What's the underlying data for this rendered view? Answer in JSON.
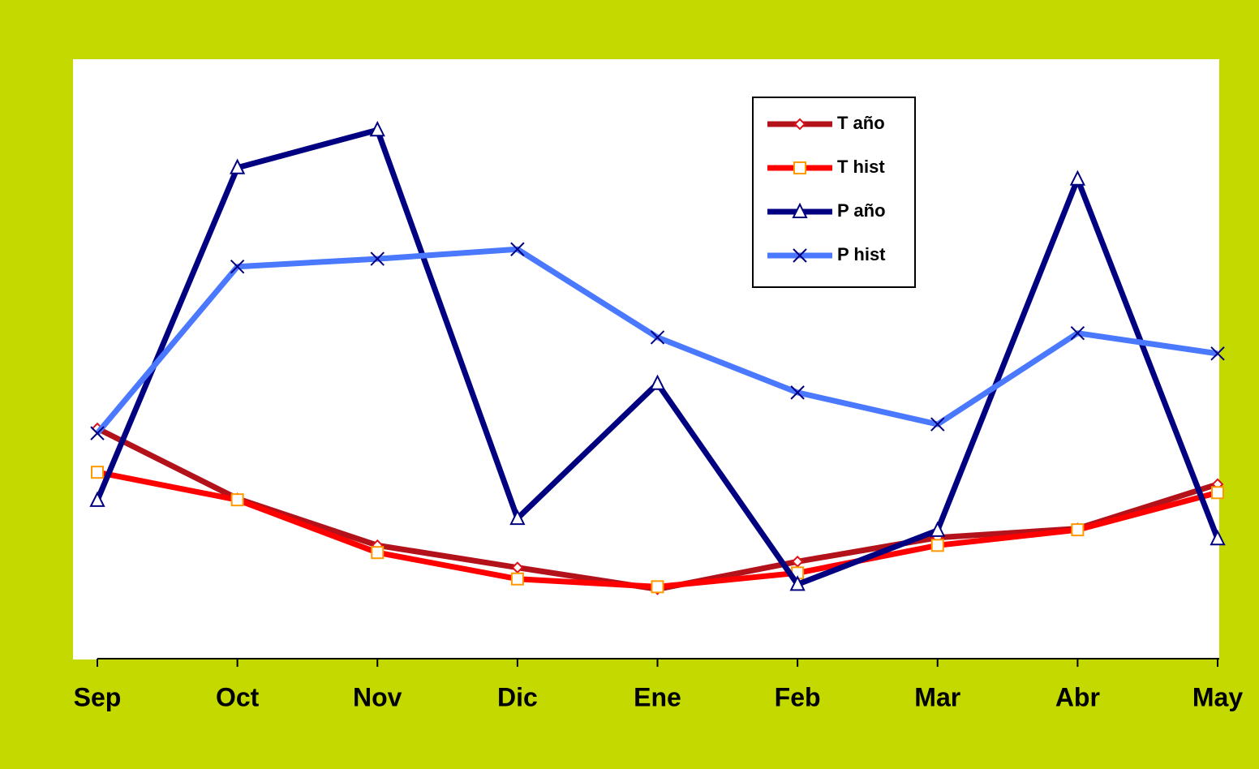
{
  "chart_data": {
    "type": "line",
    "categories": [
      "Sep",
      "Oct",
      "Nov",
      "Dic",
      "Ene",
      "Feb",
      "Mar",
      "Abr",
      "May"
    ],
    "series": [
      {
        "name": "T año",
        "color": "#b3121b",
        "marker": "diamond",
        "marker_color": "#e0101a",
        "values": [
          38.4,
          26.7,
          18.9,
          15.2,
          11.6,
          16.2,
          20.2,
          21.7,
          29.1
        ]
      },
      {
        "name": "T hist",
        "color": "#ff0000",
        "marker": "square",
        "marker_color": "#ff9900",
        "values": [
          31.1,
          26.5,
          17.7,
          13.3,
          12.0,
          14.3,
          18.9,
          21.5,
          27.7
        ]
      },
      {
        "name": "P año",
        "color": "#000080",
        "marker": "triangle",
        "marker_color": "#000080",
        "values": [
          26.4,
          81.9,
          88.2,
          23.4,
          45.9,
          12.4,
          21.4,
          80.0,
          20.0
        ]
      },
      {
        "name": "P hist",
        "color": "#4a78ff",
        "marker": "x",
        "marker_color": "#000080",
        "values": [
          37.6,
          65.4,
          66.7,
          68.3,
          53.6,
          44.4,
          39.1,
          54.3,
          50.9
        ]
      }
    ],
    "ylim": [
      0,
      100
    ],
    "legend": "top-right",
    "background": "#c3d900"
  }
}
